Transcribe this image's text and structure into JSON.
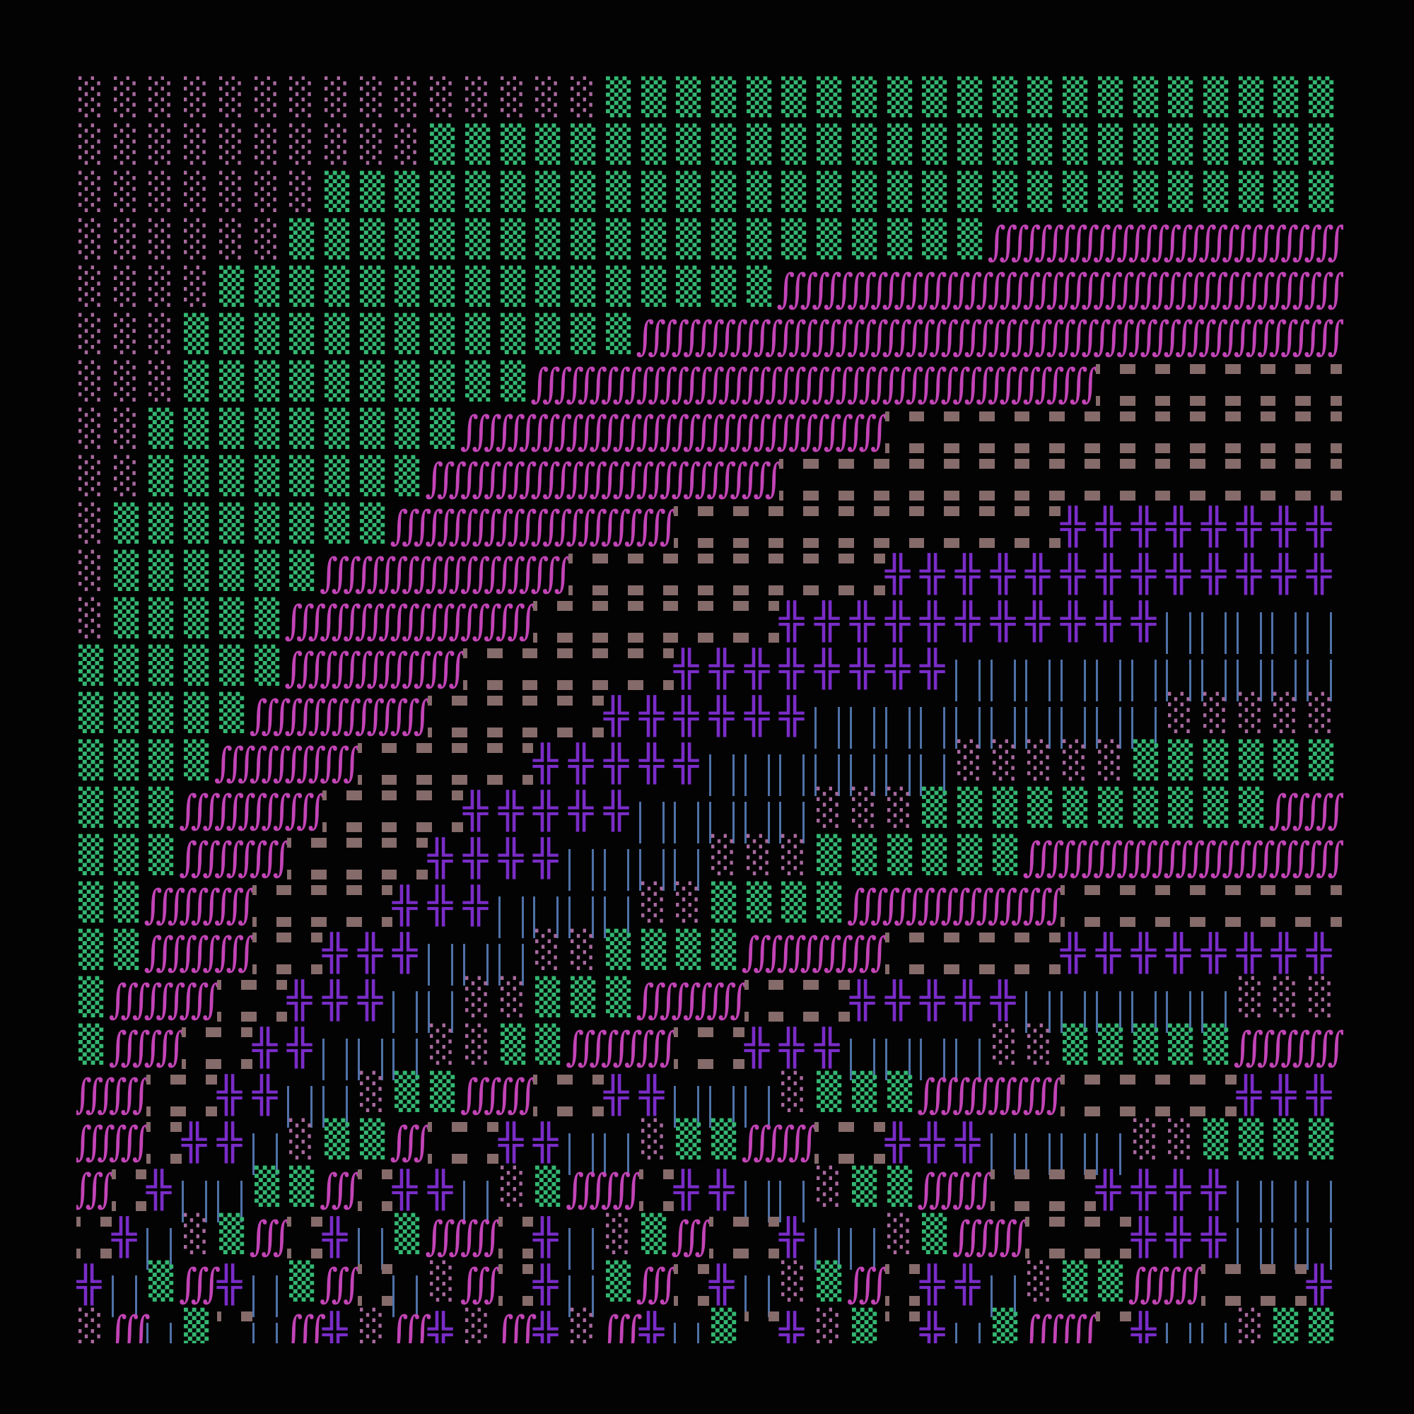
{
  "palette": [
    {
      "kind": "shade",
      "glyph": "░",
      "color": "#a8699e"
    },
    {
      "kind": "shade",
      "glyph": "▒",
      "color": "#34b872"
    },
    {
      "kind": "integral",
      "glyph": "∭",
      "color": "#c244b6"
    },
    {
      "kind": "dots",
      "glyph": "brown-block-dots",
      "color": "#866b6b"
    },
    {
      "kind": "box",
      "glyph": "╬",
      "color": "#7a2cc8"
    },
    {
      "kind": "bars",
      "glyph": "double-vertical-bar",
      "color": "#4f72a8"
    }
  ],
  "background": "#030303",
  "grid": {
    "rows": [
      "000000000000000111111111111111111111",
      "000000000011111111111111111111111111",
      "000000011111111111111111111111111111",
      "000000111111111111111111112222222222",
      "000011111111111111112222222222222222",
      "000111111111111122222222222222222222",
      "000111111111122222222222222223333333",
      "001111111112222222222223333333333333",
      "001111111122222222223333333333333333",
      "011111111222222223333333333344444444",
      "011111122222223333333334444444444444",
      "011111222222233333334444444444455555",
      "111111222223333334444444455555555555",
      "111112222233333444444555555555500000",
      "111122223333344444555555500000111111",
      "111222233334444455555000111111111122",
      "111222333344445555000111111222222222",
      "112223333444555500111122222233333333",
      "112223344455500111122223333344444444",
      "122233444550011122233344444555555000",
      "122334455500112223344455550011111222",
      "223344550112233445550111222233333444",
      "223445011233445501122334445555001111",
      "234551123445012234455011223334444555",
      "345012345122345012334550122333444555",
      "451245123502345123450123445011223334",
      "025135240240240245134013451223455011"
    ]
  }
}
